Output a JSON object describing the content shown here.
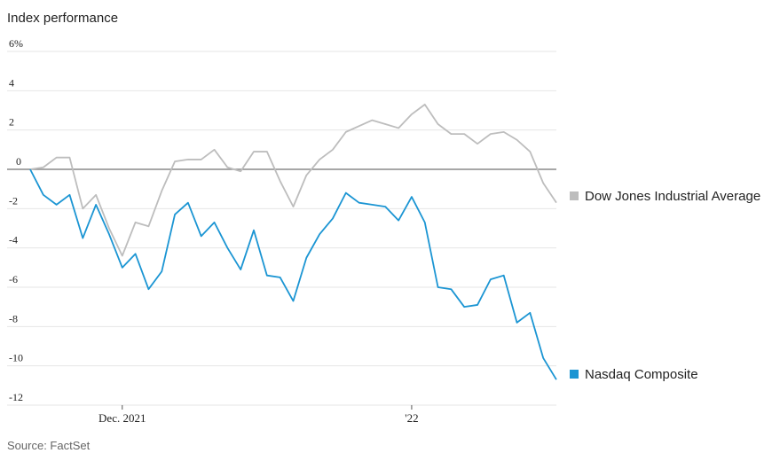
{
  "chart_data": {
    "type": "line",
    "title": "Index performance",
    "source": "Source: FactSet",
    "xlabel": "",
    "ylabel": "",
    "y_ticks": [
      6,
      4,
      2,
      0,
      -2,
      -4,
      -6,
      -8,
      -10,
      -12
    ],
    "y_tick_labels": [
      "6%",
      "4",
      "2",
      "0",
      "-2",
      "-4",
      "-6",
      "-8",
      "-10",
      "-12"
    ],
    "ylim": [
      -12,
      6
    ],
    "x_tick_labels": [
      {
        "label": "Dec. 2021",
        "index": 7
      },
      {
        "label": "'22",
        "index": 29
      }
    ],
    "grid": true,
    "legend_position": "right",
    "series": [
      {
        "name": "Dow Jones Industrial Average",
        "color": "#bdbdbd",
        "values": [
          0.0,
          0.1,
          0.6,
          0.6,
          -2.0,
          -1.3,
          -3.0,
          -4.4,
          -2.7,
          -2.9,
          -1.1,
          0.4,
          0.5,
          0.5,
          1.0,
          0.1,
          -0.1,
          0.9,
          0.9,
          -0.6,
          -1.9,
          -0.3,
          0.5,
          1.0,
          1.9,
          2.2,
          2.5,
          2.3,
          2.1,
          2.8,
          3.3,
          2.3,
          1.8,
          1.8,
          1.3,
          1.8,
          1.9,
          1.5,
          0.9,
          -0.7,
          -1.7
        ]
      },
      {
        "name": "Nasdaq Composite",
        "color": "#1b95d3",
        "values": [
          0.0,
          -1.3,
          -1.8,
          -1.3,
          -3.5,
          -1.8,
          -3.3,
          -5.0,
          -4.3,
          -6.1,
          -5.2,
          -2.3,
          -1.7,
          -3.4,
          -2.7,
          -4.0,
          -5.1,
          -3.1,
          -5.4,
          -5.5,
          -6.7,
          -4.5,
          -3.3,
          -2.5,
          -1.2,
          -1.7,
          -1.8,
          -1.9,
          -2.6,
          -1.4,
          -2.7,
          -6.0,
          -6.1,
          -7.0,
          -6.9,
          -5.6,
          -5.4,
          -7.8,
          -7.3,
          -9.6,
          -10.7
        ]
      }
    ]
  }
}
